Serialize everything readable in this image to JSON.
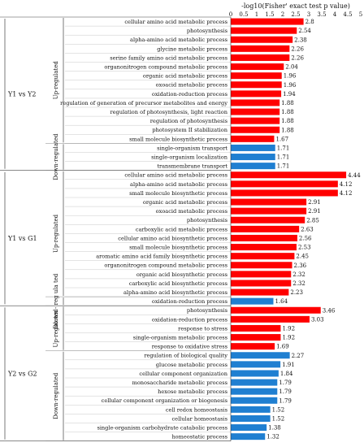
{
  "chart_data": {
    "type": "bar",
    "orientation": "horizontal",
    "title": "-log10(Fisher' exact test p value)",
    "xlabel": "-log10(Fisher' exact test p value)",
    "xlim": [
      0,
      5
    ],
    "xticks": [
      "0",
      "0.5",
      "1",
      "1.5",
      "2",
      "2.5",
      "3",
      "3.5",
      "4",
      "4.5",
      "5"
    ],
    "colors": {
      "up": "#ff0000",
      "down": "#1f7fd1",
      "up_dark": "#cc1b1b",
      "down_dark": "#1f55c8"
    },
    "groups": [
      {
        "name": "Y1 vs Y2",
        "subgroups": [
          {
            "name": "Up-regulated",
            "direction": "up",
            "items": [
              {
                "label": "cellular amino acid metabolic process",
                "value": 2.8
              },
              {
                "label": "photosynthesis",
                "value": 2.54
              },
              {
                "label": "alpha-amino acid metabolic process",
                "value": 2.38
              },
              {
                "label": "glycine metabolic process",
                "value": 2.26
              },
              {
                "label": "serine family amino acid metabolic process",
                "value": 2.26
              },
              {
                "label": "organonitrogen compound metabolic process",
                "value": 2.04
              },
              {
                "label": "organic acid metabolic process",
                "value": 1.96
              },
              {
                "label": "oxoacid metabolic process",
                "value": 1.96
              },
              {
                "label": "oxidation-reduction process",
                "value": 1.94
              },
              {
                "label": "regulation of generation of precursor metabolites and energy",
                "value": 1.88
              },
              {
                "label": "regulation of photosynthesis, light reaction",
                "value": 1.88
              },
              {
                "label": "regulation of photosynthesis",
                "value": 1.88
              },
              {
                "label": "photosystem II stabilization",
                "value": 1.88
              },
              {
                "label": "small molecule biosynthetic process",
                "value": 1.67
              }
            ]
          },
          {
            "name": "Down-regulated",
            "direction": "down",
            "items": [
              {
                "label": "single-organism transport",
                "value": 1.71
              },
              {
                "label": "single-organism localization",
                "value": 1.71
              },
              {
                "label": "transmembrane transport",
                "value": 1.71
              }
            ]
          }
        ]
      },
      {
        "name": "Y1 vs G1",
        "subgroups": [
          {
            "name": "Up-regulated",
            "direction": "up",
            "items": [
              {
                "label": "cellular amino acid metabolic process",
                "value": 4.44
              },
              {
                "label": "alpha-amino acid metabolic process",
                "value": 4.12
              },
              {
                "label": "small molecule biosynthetic process",
                "value": 4.12
              },
              {
                "label": "organic acid metabolic process",
                "value": 2.91
              },
              {
                "label": "oxoacid metabolic process",
                "value": 2.91
              },
              {
                "label": "photosynthesis",
                "value": 2.85
              },
              {
                "label": "carboxylic acid metabolic process",
                "value": 2.63
              },
              {
                "label": "cellular amino acid biosynthetic process",
                "value": 2.56
              },
              {
                "label": "small molecule biosynthetic process",
                "value": 2.53
              },
              {
                "label": "aromatic amino acid family biosynthetic process",
                "value": 2.45
              },
              {
                "label": "organonitrogen compound metabolic process",
                "value": 2.36
              },
              {
                "label": "organic acid biosynthetic process",
                "value": 2.32
              },
              {
                "label": "carboxylic acid biosynthetic process",
                "value": 2.32
              },
              {
                "label": "alpha-amino acid biosynthetic process",
                "value": 2.23
              }
            ]
          },
          {
            "name": "Do wn - reg ula ted",
            "direction": "down",
            "items": [
              {
                "label": "oxidation-reduction process",
                "value": 1.64
              }
            ]
          }
        ]
      },
      {
        "name": "Y2 vs G2",
        "subgroups": [
          {
            "name": "Up-regulated",
            "direction": "up",
            "items": [
              {
                "label": "photosynthesis",
                "value": 3.46
              },
              {
                "label": "oxidation-reduction process",
                "value": 3.03
              },
              {
                "label": "response to stress",
                "value": 1.92
              },
              {
                "label": "single-organism metabolic process",
                "value": 1.92
              },
              {
                "label": "response to oxidative stress",
                "value": 1.69
              }
            ]
          },
          {
            "name": "Down-regulated",
            "direction": "down",
            "items": [
              {
                "label": "regulation of biological quality",
                "value": 2.27
              },
              {
                "label": "glucose metabolic process",
                "value": 1.91
              },
              {
                "label": "cellular component organization",
                "value": 1.84
              },
              {
                "label": "monosaccharide metabolic process",
                "value": 1.79
              },
              {
                "label": "hexose metabolic process",
                "value": 1.79
              },
              {
                "label": "cellular component organization or biogenesis",
                "value": 1.79
              },
              {
                "label": "cell redox homeostasis",
                "value": 1.52
              },
              {
                "label": "cellular homeostasis",
                "value": 1.52
              },
              {
                "label": "single-organism carbohydrate catabolic process",
                "value": 1.38
              },
              {
                "label": "homeostatic process",
                "value": 1.32
              }
            ]
          }
        ]
      }
    ]
  }
}
